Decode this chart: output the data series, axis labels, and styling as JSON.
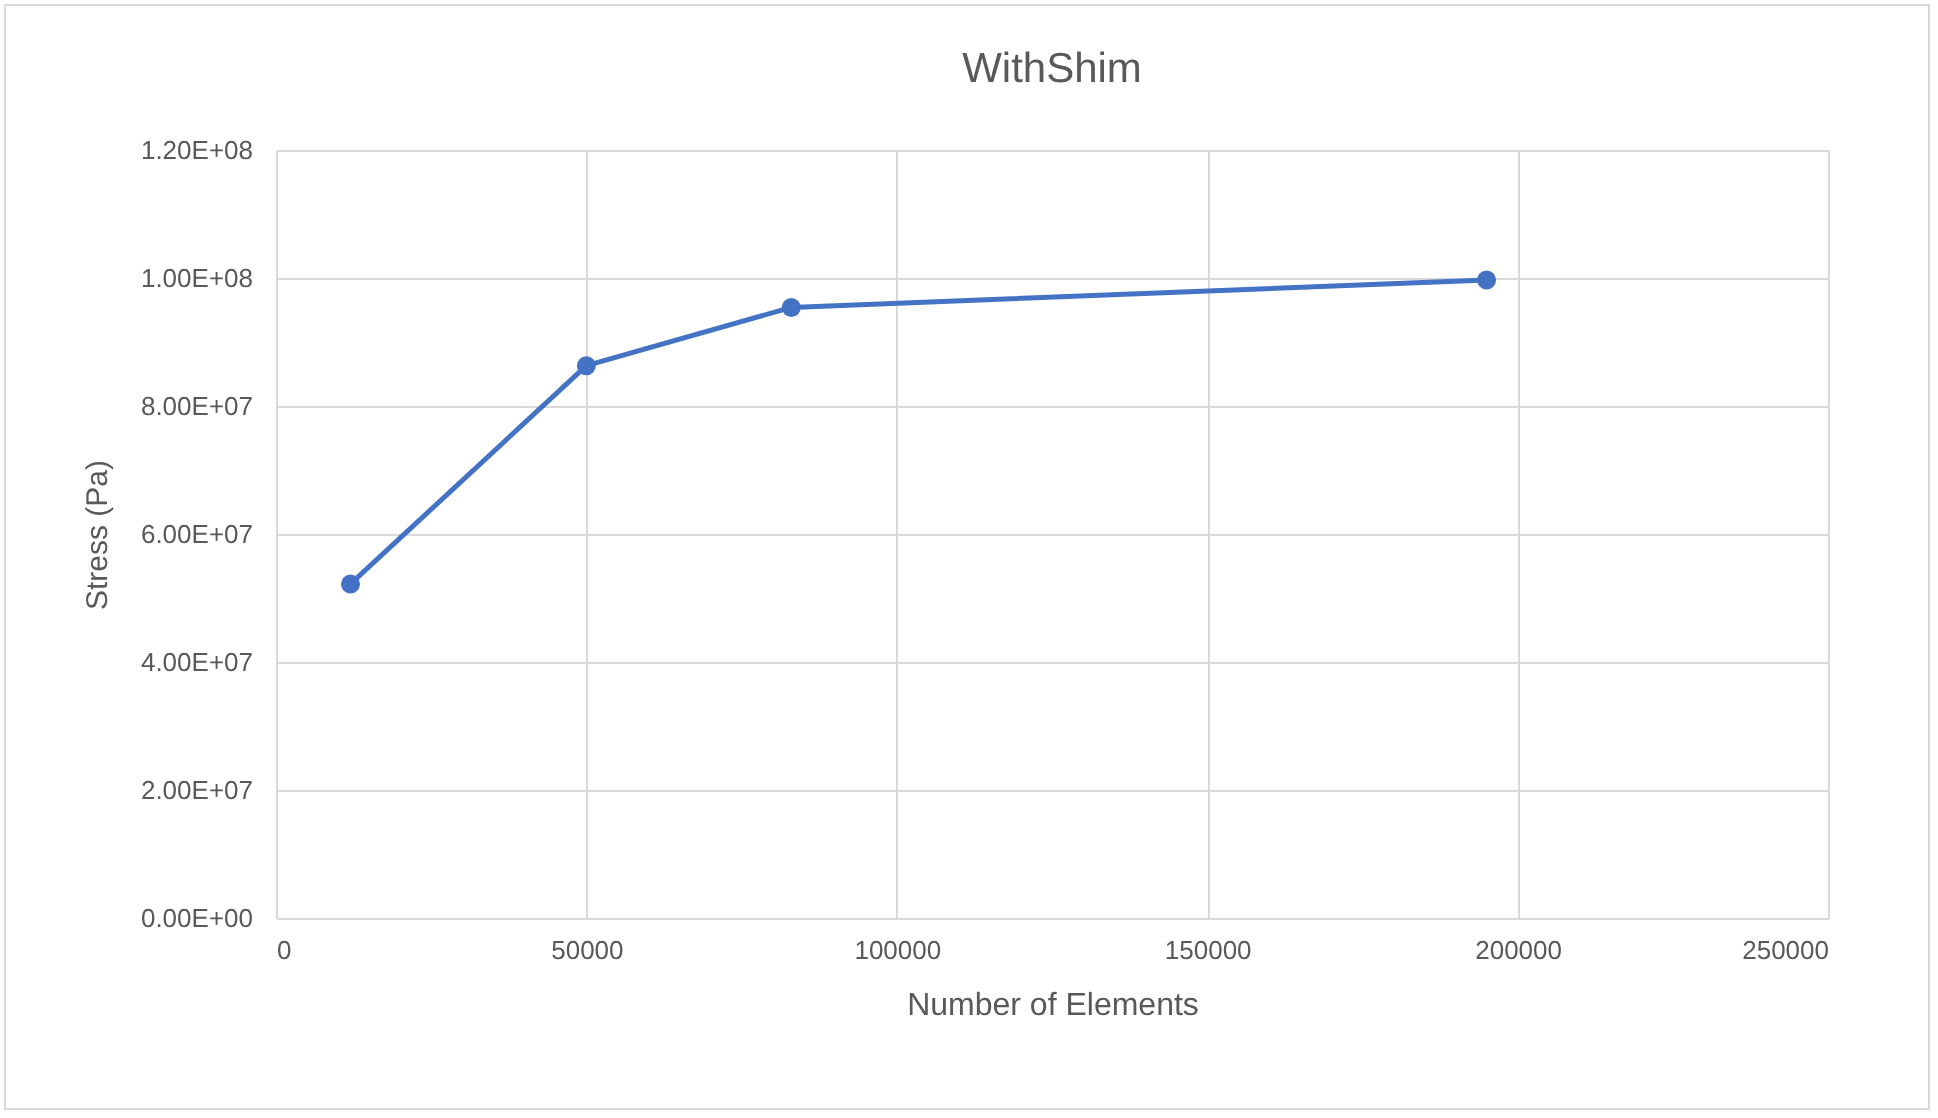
{
  "chart_data": {
    "type": "line",
    "title": "WithShim",
    "xlabel": "Number of Elements",
    "ylabel": "Stress (Pa)",
    "x": [
      12000,
      50000,
      83000,
      195000
    ],
    "series": [
      {
        "color": "#4472c4",
        "values": [
          52200000,
          86300000,
          95400000,
          99700000
        ]
      }
    ],
    "xlim": [
      0,
      250000
    ],
    "xticks": [
      0,
      50000,
      100000,
      150000,
      200000,
      250000
    ],
    "ylim": [
      0,
      120000000
    ],
    "yticks": [
      {
        "value": 0,
        "label": "0.00E+00"
      },
      {
        "value": 20000000,
        "label": "2.00E+07"
      },
      {
        "value": 40000000,
        "label": "4.00E+07"
      },
      {
        "value": 60000000,
        "label": "6.00E+07"
      },
      {
        "value": 80000000,
        "label": "8.00E+07"
      },
      {
        "value": 100000000,
        "label": "1.00E+08"
      },
      {
        "value": 120000000,
        "label": "1.20E+08"
      }
    ],
    "grid": true,
    "marker": "circle",
    "line_style": "solid",
    "legend": false
  }
}
